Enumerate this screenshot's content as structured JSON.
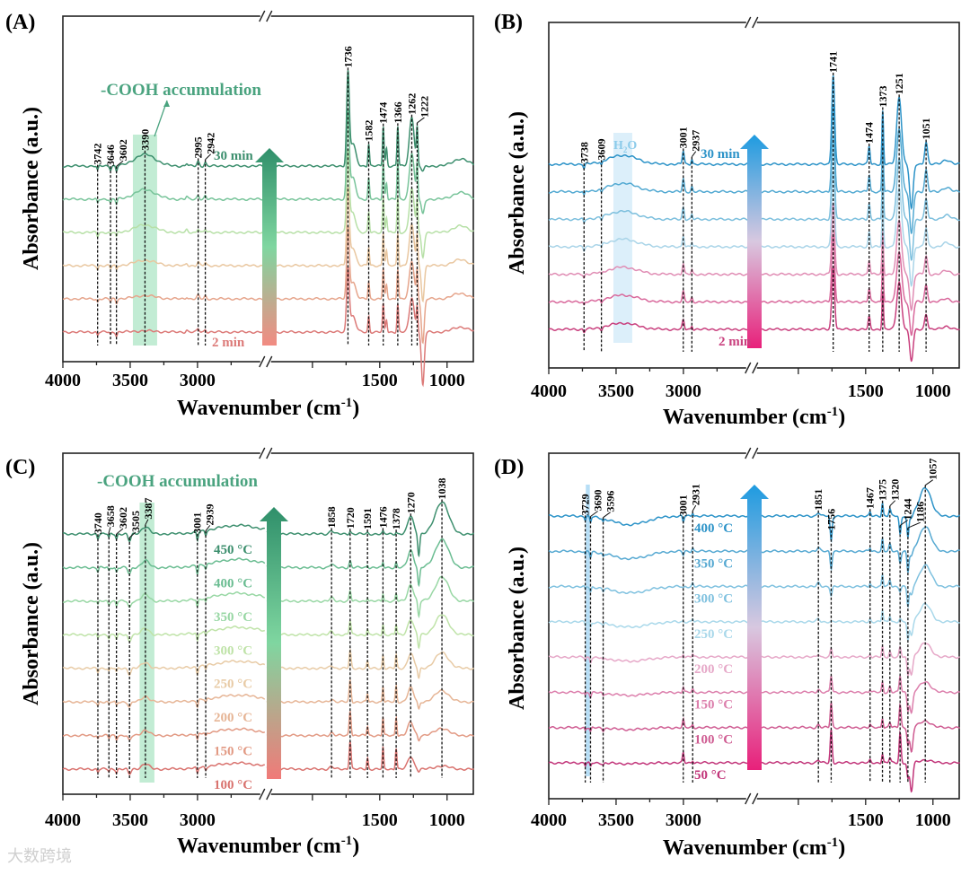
{
  "watermark": "大数跨境",
  "chart_data": [
    {
      "type": "line",
      "panel": "(A)",
      "ylabel": "Absorbance (a.u.)",
      "xlabel_prefix": "Wavenumber (cm",
      "xlabel_exp": "-1",
      "xlabel_suffix": ")",
      "xlim": [
        4000,
        800
      ],
      "axis_break": [
        2500,
        2340
      ],
      "xticks": [
        4000,
        3500,
        3000,
        1500,
        1000
      ],
      "arrow_colors": [
        "#2f8f6a",
        "#7fd6a0",
        "#f28b82"
      ],
      "series": [
        {
          "label": "2 min",
          "color": "#dc7a78"
        },
        {
          "color": "#e6a58c"
        },
        {
          "color": "#e9c7a0"
        },
        {
          "color": "#b7e0a7"
        },
        {
          "color": "#78c49a"
        },
        {
          "label": "30 min",
          "color": "#3d8f6e"
        }
      ],
      "annotation": "-COOH accumulation",
      "annotation_color": "#4aa37f",
      "highlight": {
        "range": [
          3480,
          3300
        ],
        "color": "#8fdcb0"
      },
      "peaks": [
        "3742",
        "3646",
        "3602",
        "3390",
        "2995",
        "2942",
        "1736",
        "1582",
        "1474",
        "1366",
        "1262",
        "1222"
      ],
      "bands": [
        {
          "wavenumber": 3742,
          "intensity": -0.05,
          "width": 8
        },
        {
          "wavenumber": 3646,
          "intensity": -0.04,
          "width": 8
        },
        {
          "wavenumber": 3602,
          "intensity": -0.06,
          "width": 8
        },
        {
          "wavenumber": 3390,
          "intensity": 0.13,
          "width": 110,
          "trend": 1
        },
        {
          "wavenumber": 3080,
          "intensity": 0.03,
          "width": 10
        },
        {
          "wavenumber": 2995,
          "intensity": 0.05,
          "width": 12
        },
        {
          "wavenumber": 2942,
          "intensity": 0.04,
          "width": 10
        },
        {
          "wavenumber": 1736,
          "intensity": 1.0,
          "width": 14
        },
        {
          "wavenumber": 1700,
          "intensity": 0.25,
          "width": 30
        },
        {
          "wavenumber": 1582,
          "intensity": 0.25,
          "width": 8
        },
        {
          "wavenumber": 1474,
          "intensity": 0.45,
          "width": 8
        },
        {
          "wavenumber": 1450,
          "intensity": 0.2,
          "width": 8
        },
        {
          "wavenumber": 1366,
          "intensity": 0.45,
          "width": 8
        },
        {
          "wavenumber": 1262,
          "intensity": 0.55,
          "width": 25
        },
        {
          "wavenumber": 1222,
          "intensity": 0.4,
          "width": 8
        },
        {
          "wavenumber": 1180,
          "intensity": -0.6,
          "width": 15,
          "trend": -1
        },
        {
          "wavenumber": 900,
          "intensity": 0.08,
          "width": 80
        }
      ]
    },
    {
      "type": "line",
      "panel": "(B)",
      "ylabel": "Absorbance (a.u.)",
      "xlabel_prefix": "Wavenumber (cm",
      "xlabel_exp": "-1",
      "xlabel_suffix": ")",
      "xlim": [
        4000,
        800
      ],
      "axis_break": [
        2500,
        2340
      ],
      "xticks": [
        4000,
        3500,
        3000,
        1500,
        1000
      ],
      "arrow_colors": [
        "#1e9be0",
        "#d8c8e0",
        "#e8207a"
      ],
      "series": [
        {
          "label": "2 min",
          "color": "#c9407e"
        },
        {
          "color": "#d9699c"
        },
        {
          "color": "#e08db4"
        },
        {
          "color": "#a9d4e8"
        },
        {
          "color": "#7cbfdd"
        },
        {
          "color": "#52a9d2"
        },
        {
          "label": "30 min",
          "color": "#2c93c8"
        }
      ],
      "highlight": {
        "label_main": "H",
        "label_sub": "2",
        "label_end": "O",
        "range": [
          3520,
          3380
        ],
        "color": "#bfe1f5"
      },
      "peaks": [
        "3738",
        "3609",
        "3001",
        "2937",
        "1741",
        "1474",
        "1373",
        "1251",
        "1051"
      ],
      "bands": [
        {
          "wavenumber": 3738,
          "intensity": -0.05,
          "width": 8
        },
        {
          "wavenumber": 3609,
          "intensity": -0.04,
          "width": 8
        },
        {
          "wavenumber": 3450,
          "intensity": 0.1,
          "width": 150
        },
        {
          "wavenumber": 3001,
          "intensity": 0.15,
          "width": 10
        },
        {
          "wavenumber": 2937,
          "intensity": 0.06,
          "width": 8
        },
        {
          "wavenumber": 1741,
          "intensity": 1.0,
          "width": 15
        },
        {
          "wavenumber": 1474,
          "intensity": 0.2,
          "width": 10
        },
        {
          "wavenumber": 1373,
          "intensity": 0.6,
          "width": 8
        },
        {
          "wavenumber": 1251,
          "intensity": 0.75,
          "width": 25
        },
        {
          "wavenumber": 1160,
          "intensity": -0.5,
          "width": 18
        },
        {
          "wavenumber": 1051,
          "intensity": 0.25,
          "width": 15
        },
        {
          "wavenumber": 900,
          "intensity": 0.05,
          "width": 40
        }
      ]
    },
    {
      "type": "line",
      "panel": "(C)",
      "ylabel": "Absorbance (a.u.)",
      "xlabel_prefix": "Wavenumber (cm",
      "xlabel_exp": "-1",
      "xlabel_suffix": ")",
      "xlim": [
        4000,
        800
      ],
      "axis_break": [
        2500,
        2340
      ],
      "xticks": [
        4000,
        3500,
        3000,
        1500,
        1000
      ],
      "arrow_colors": [
        "#2f8f6a",
        "#7fd6a0",
        "#f07a78"
      ],
      "series": [
        {
          "label": "100 °C",
          "color": "#d9736f"
        },
        {
          "label": "150 °C",
          "color": "#e29a84"
        },
        {
          "label": "200 °C",
          "color": "#e6b596"
        },
        {
          "label": "250 °C",
          "color": "#e8cba6"
        },
        {
          "label": "300 °C",
          "color": "#bfe3a8"
        },
        {
          "label": "350 °C",
          "color": "#98d7a4"
        },
        {
          "label": "400 °C",
          "color": "#6bbd92"
        },
        {
          "label": "450 °C",
          "color": "#3d8f6e"
        }
      ],
      "annotation": "-COOH accumulation",
      "annotation_color": "#4aa37f",
      "highlight": {
        "range": [
          3430,
          3320
        ],
        "color": "#8fdcb0"
      },
      "peaks": [
        "3740",
        "3658",
        "3602",
        "3505",
        "3387",
        "3001",
        "2939",
        "1858",
        "1720",
        "1591",
        "1476",
        "1378",
        "1270",
        "1038"
      ],
      "bands": [
        {
          "wavenumber": 3740,
          "intensity": -0.06,
          "width": 8
        },
        {
          "wavenumber": 3658,
          "intensity": -0.05,
          "width": 8
        },
        {
          "wavenumber": 3602,
          "intensity": -0.07,
          "width": 8
        },
        {
          "wavenumber": 3505,
          "intensity": -0.1,
          "width": 15
        },
        {
          "wavenumber": 3387,
          "intensity": 0.1,
          "width": 40
        },
        {
          "wavenumber": 3001,
          "intensity": -0.12,
          "width": 8
        },
        {
          "wavenumber": 2939,
          "intensity": -0.06,
          "width": 8
        },
        {
          "wavenumber": 2700,
          "intensity": 0.12,
          "width": 250
        },
        {
          "wavenumber": 1858,
          "intensity": 0.05,
          "width": 20
        },
        {
          "wavenumber": 1720,
          "intensity": 0.4,
          "width": 10,
          "trend": -1
        },
        {
          "wavenumber": 1591,
          "intensity": 0.15,
          "width": 8,
          "trend": -1
        },
        {
          "wavenumber": 1476,
          "intensity": 0.3,
          "width": 7,
          "trend": -1
        },
        {
          "wavenumber": 1378,
          "intensity": 0.3,
          "width": 8,
          "trend": -1
        },
        {
          "wavenumber": 1270,
          "intensity": 0.25,
          "width": 30
        },
        {
          "wavenumber": 1210,
          "intensity": -0.3,
          "width": 10,
          "trend": 1
        },
        {
          "wavenumber": 1038,
          "intensity": 0.45,
          "width": 70,
          "trend": 1
        }
      ]
    },
    {
      "type": "line",
      "panel": "(D)",
      "ylabel": "Absorbance (a.u.)",
      "xlabel_prefix": "Wavenumber (cm",
      "xlabel_exp": "-1",
      "xlabel_suffix": ")",
      "xlim": [
        4000,
        800
      ],
      "axis_break": [
        2500,
        2340
      ],
      "xticks": [
        4000,
        3500,
        3000,
        1500,
        1000
      ],
      "arrow_colors": [
        "#1e9be0",
        "#d8c8e0",
        "#e8207a"
      ],
      "series": [
        {
          "label": "50 °C",
          "color": "#c2357a"
        },
        {
          "label": "100 °C",
          "color": "#cf5c92"
        },
        {
          "label": "150 °C",
          "color": "#dc7fac"
        },
        {
          "label": "200 °C",
          "color": "#e6a8c8"
        },
        {
          "label": "250 °C",
          "color": "#a9d8ea"
        },
        {
          "label": "300 °C",
          "color": "#7fc1df"
        },
        {
          "label": "350 °C",
          "color": "#56a9d2"
        },
        {
          "label": "400 °C",
          "color": "#2c93c8"
        }
      ],
      "highlight": {
        "range": [
          3725,
          3695
        ],
        "color": "#7cc3ee"
      },
      "peaks": [
        "3729",
        "3690",
        "3596",
        "3001",
        "2931",
        "1851",
        "1756",
        "1467",
        "1375",
        "1320",
        "1244",
        "1186",
        "1057"
      ],
      "bands": [
        {
          "wavenumber": 3729,
          "intensity": -0.05,
          "width": 6
        },
        {
          "wavenumber": 3690,
          "intensity": -0.08,
          "width": 8
        },
        {
          "wavenumber": 3596,
          "intensity": -0.04,
          "width": 8
        },
        {
          "wavenumber": 3400,
          "intensity": -0.12,
          "width": 180,
          "trend": 1
        },
        {
          "wavenumber": 3001,
          "intensity": -0.1,
          "width": 8,
          "trend": 1
        },
        {
          "wavenumber": 3001,
          "intensity": 0.15,
          "width": 8,
          "trend": -1
        },
        {
          "wavenumber": 2931,
          "intensity": 0.05,
          "width": 8
        },
        {
          "wavenumber": 1851,
          "intensity": 0.05,
          "width": 15
        },
        {
          "wavenumber": 1756,
          "intensity": -0.4,
          "width": 10,
          "trend": 1
        },
        {
          "wavenumber": 1756,
          "intensity": 0.5,
          "width": 10,
          "trend": -1
        },
        {
          "wavenumber": 1467,
          "intensity": 0.05,
          "width": 8
        },
        {
          "wavenumber": 1375,
          "intensity": 0.18,
          "width": 8
        },
        {
          "wavenumber": 1320,
          "intensity": 0.1,
          "width": 10
        },
        {
          "wavenumber": 1244,
          "intensity": -0.3,
          "width": 10,
          "trend": 1
        },
        {
          "wavenumber": 1244,
          "intensity": 0.45,
          "width": 10,
          "trend": -1
        },
        {
          "wavenumber": 1186,
          "intensity": -0.3,
          "width": 10
        },
        {
          "wavenumber": 1160,
          "intensity": -0.4,
          "width": 15,
          "trend": -1
        },
        {
          "wavenumber": 1057,
          "intensity": 0.4,
          "width": 60,
          "trend": 1
        }
      ]
    }
  ]
}
